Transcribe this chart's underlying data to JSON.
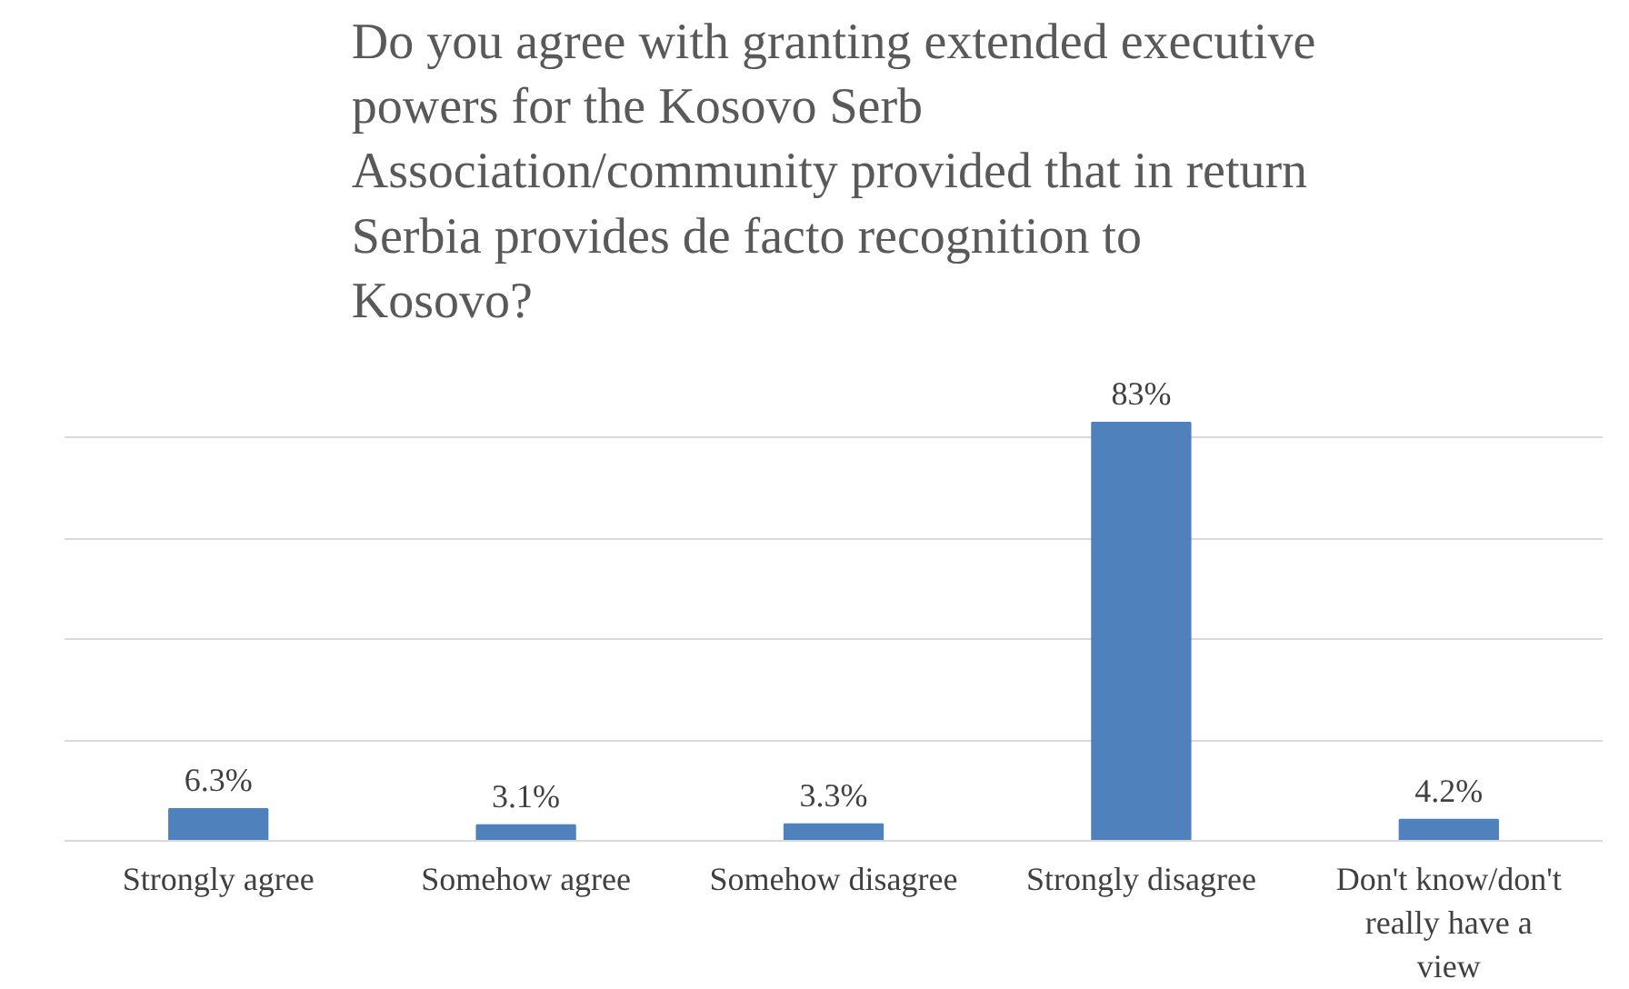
{
  "chart_data": {
    "type": "bar",
    "title": "Do you agree with granting extended executive powers for the Kosovo Serb Association/community provided that in return Serbia provides de facto recognition to Kosovo?",
    "categories": [
      "Strongly agree",
      "Somehow agree",
      "Somehow disagree",
      "Strongly disagree",
      "Don't know/don't really have a view"
    ],
    "values": [
      6.3,
      3.1,
      3.3,
      83,
      4.2
    ],
    "value_labels": [
      "6.3%",
      "3.1%",
      "3.3%",
      "83%",
      "4.2%"
    ],
    "color": "#4f81bd",
    "grid": "y"
  }
}
